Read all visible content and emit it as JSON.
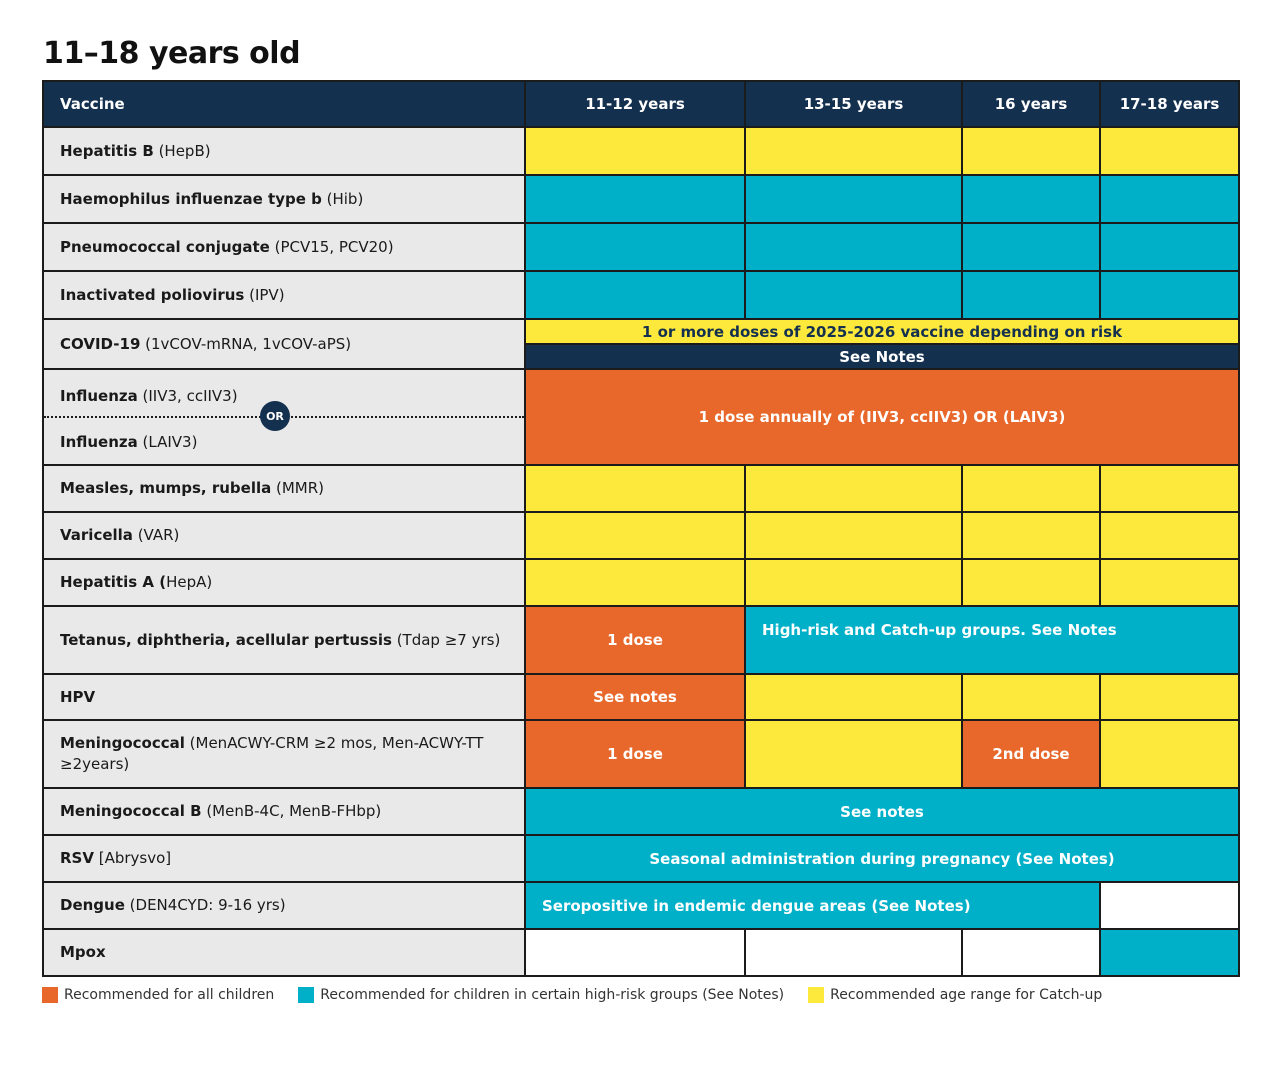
{
  "title": "11–18 years old",
  "header": {
    "vaccine": "Vaccine",
    "ages": [
      "11-12 years",
      "13-15 years",
      "16 years",
      "17-18 years"
    ]
  },
  "rows": {
    "hepb": {
      "name": "Hepatitis B",
      "detail": " (HepB)"
    },
    "hib": {
      "name": "Haemophilus influenzae type b",
      "detail": " (Hib)"
    },
    "pcv": {
      "name": "Pneumococcal conjugate",
      "detail": " (PCV15, PCV20)"
    },
    "ipv": {
      "name": "Inactivated poliovirus",
      "detail": " (IPV)"
    },
    "covid": {
      "name": "COVID-19",
      "detail": " (1vCOV-mRNA, 1vCOV-aPS)",
      "top": "1 or more doses of 2025-2026 vaccine depending on risk",
      "bottom": "See Notes"
    },
    "flu": {
      "name_a": "Influenza",
      "detail_a": " (IIV3, ccIIV3)",
      "or": "OR",
      "name_b": "Influenza",
      "detail_b": " (LAIV3)",
      "cell": "1 dose annually of (IIV3, ccIIV3) OR (LAIV3)"
    },
    "mmr": {
      "name": "Measles, mumps, rubella",
      "detail": " (MMR)"
    },
    "var": {
      "name": "Varicella",
      "detail": " (VAR)"
    },
    "hepa": {
      "name": "Hepatitis A (",
      "detail": "HepA)"
    },
    "tdap": {
      "name": "Tetanus, diphtheria, acellular pertussis",
      "detail": " (Tdap ≥7 yrs)",
      "dose": "1 dose",
      "other": "High-risk and Catch-up groups. See Notes"
    },
    "hpv": {
      "name": "HPV",
      "detail": "",
      "cell": "See notes"
    },
    "menacwy": {
      "name": "Meningococcal",
      "detail": " (MenACWY-CRM ≥2 mos, Men-ACWY-TT ≥2years)",
      "dose1": "1 dose",
      "dose2": "2nd dose"
    },
    "menb": {
      "name": "Meningococcal B",
      "detail": " (MenB-4C, MenB-FHbp)",
      "cell": "See notes"
    },
    "rsv": {
      "name": "RSV",
      "detail": " [Abrysvo]",
      "cell": "Seasonal administration during pregnancy (See Notes)"
    },
    "dengue": {
      "name": "Dengue",
      "detail": " (DEN4CYD: 9-16 yrs)",
      "cell": "Seropositive in endemic dengue areas (See Notes)"
    },
    "mpox": {
      "name": "Mpox",
      "detail": ""
    }
  },
  "legend": [
    {
      "label": "Recommended for all children",
      "color": "#e8672a"
    },
    {
      "label": "Recommended for children in certain high-risk groups (See Notes)",
      "color": "#00b0c8"
    },
    {
      "label": "Recommended age range for Catch-up",
      "color": "#fde93b"
    }
  ]
}
